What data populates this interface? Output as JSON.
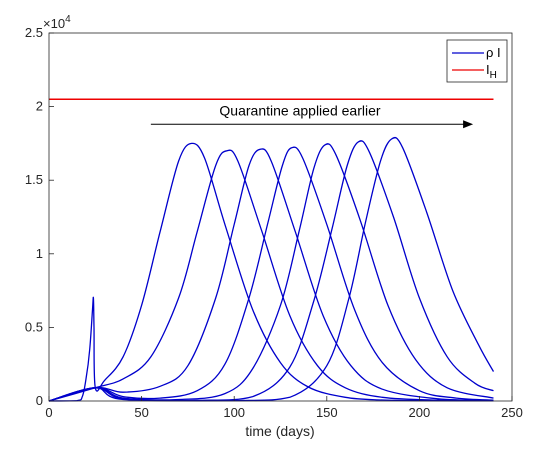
{
  "chart_data": {
    "type": "line",
    "xlabel": "time (days)",
    "ylabel": "",
    "xlim": [
      0,
      250
    ],
    "ylim": [
      0,
      25000
    ],
    "x_ticks": [
      "0",
      "50",
      "100",
      "150",
      "200",
      "250"
    ],
    "y_ticks": [
      "0",
      "0.5",
      "1",
      "1.5",
      "2",
      "2.5"
    ],
    "y_exponent": {
      "base": "×10",
      "power": "4"
    },
    "grid": false,
    "legend_position": "top-right",
    "legend": [
      {
        "label_main": "ρ I",
        "label_sub": "",
        "color": "#0000cc"
      },
      {
        "label_main": "I",
        "label_sub": "H",
        "color": "#ee0000"
      }
    ],
    "threshold": {
      "name": "I_H",
      "value": 20500,
      "x": [
        0,
        240
      ],
      "color": "#ee0000"
    },
    "annotation": {
      "text": "Quarantine applied earlier",
      "arrow_from": [
        55,
        18800
      ],
      "arrow_to": [
        229,
        18800
      ]
    },
    "series": [
      {
        "points": [
          [
            0,
            0
          ],
          [
            15,
            30
          ],
          [
            18,
            300
          ],
          [
            20,
            1500
          ],
          [
            22,
            3500
          ],
          [
            23.5,
            6200
          ],
          [
            24,
            7000
          ],
          [
            24.3,
            5000
          ],
          [
            25,
            900
          ],
          [
            30,
            1400
          ],
          [
            40,
            3000
          ],
          [
            50,
            6500
          ],
          [
            60,
            11500
          ],
          [
            70,
            16300
          ],
          [
            77,
            17500
          ],
          [
            84,
            16500
          ],
          [
            95,
            12000
          ],
          [
            110,
            6200
          ],
          [
            125,
            2600
          ],
          [
            140,
            950
          ],
          [
            160,
            250
          ],
          [
            180,
            70
          ],
          [
            210,
            20
          ],
          [
            240,
            10
          ]
        ]
      },
      {
        "points": [
          [
            0,
            0
          ],
          [
            25,
            900
          ],
          [
            40,
            1500
          ],
          [
            55,
            3000
          ],
          [
            70,
            7000
          ],
          [
            80,
            11500
          ],
          [
            90,
            16000
          ],
          [
            96,
            17000
          ],
          [
            102,
            16300
          ],
          [
            115,
            11500
          ],
          [
            130,
            5800
          ],
          [
            145,
            2400
          ],
          [
            160,
            900
          ],
          [
            180,
            250
          ],
          [
            210,
            60
          ],
          [
            240,
            20
          ]
        ]
      },
      {
        "points": [
          [
            0,
            0
          ],
          [
            25,
            900
          ],
          [
            40,
            600
          ],
          [
            60,
            1000
          ],
          [
            75,
            2400
          ],
          [
            90,
            7000
          ],
          [
            100,
            12000
          ],
          [
            108,
            16000
          ],
          [
            114,
            17100
          ],
          [
            120,
            16300
          ],
          [
            133,
            11500
          ],
          [
            148,
            5800
          ],
          [
            163,
            2400
          ],
          [
            180,
            800
          ],
          [
            210,
            150
          ],
          [
            240,
            40
          ]
        ]
      },
      {
        "points": [
          [
            0,
            0
          ],
          [
            25,
            900
          ],
          [
            40,
            300
          ],
          [
            60,
            200
          ],
          [
            80,
            700
          ],
          [
            95,
            2500
          ],
          [
            108,
            7000
          ],
          [
            118,
            12000
          ],
          [
            126,
            16000
          ],
          [
            131,
            17200
          ],
          [
            137,
            16500
          ],
          [
            150,
            12000
          ],
          [
            165,
            6200
          ],
          [
            180,
            2600
          ],
          [
            200,
            700
          ],
          [
            220,
            200
          ],
          [
            240,
            60
          ]
        ]
      },
      {
        "points": [
          [
            0,
            0
          ],
          [
            25,
            900
          ],
          [
            40,
            200
          ],
          [
            70,
            100
          ],
          [
            95,
            500
          ],
          [
            110,
            2200
          ],
          [
            125,
            6500
          ],
          [
            135,
            11500
          ],
          [
            143,
            15800
          ],
          [
            149,
            17400
          ],
          [
            155,
            16700
          ],
          [
            168,
            12300
          ],
          [
            183,
            6500
          ],
          [
            198,
            2800
          ],
          [
            215,
            900
          ],
          [
            240,
            200
          ]
        ]
      },
      {
        "points": [
          [
            0,
            0
          ],
          [
            25,
            900
          ],
          [
            40,
            150
          ],
          [
            80,
            50
          ],
          [
            110,
            300
          ],
          [
            130,
            2300
          ],
          [
            143,
            6800
          ],
          [
            153,
            11800
          ],
          [
            161,
            16000
          ],
          [
            167,
            17600
          ],
          [
            173,
            16900
          ],
          [
            186,
            12500
          ],
          [
            200,
            7000
          ],
          [
            215,
            3000
          ],
          [
            230,
            1200
          ],
          [
            240,
            700
          ]
        ]
      },
      {
        "points": [
          [
            0,
            0
          ],
          [
            25,
            900
          ],
          [
            40,
            100
          ],
          [
            100,
            30
          ],
          [
            130,
            250
          ],
          [
            150,
            2400
          ],
          [
            162,
            7000
          ],
          [
            171,
            12200
          ],
          [
            179,
            16300
          ],
          [
            185,
            17800
          ],
          [
            191,
            17200
          ],
          [
            204,
            12800
          ],
          [
            218,
            7500
          ],
          [
            232,
            3800
          ],
          [
            240,
            2000
          ]
        ]
      }
    ]
  }
}
